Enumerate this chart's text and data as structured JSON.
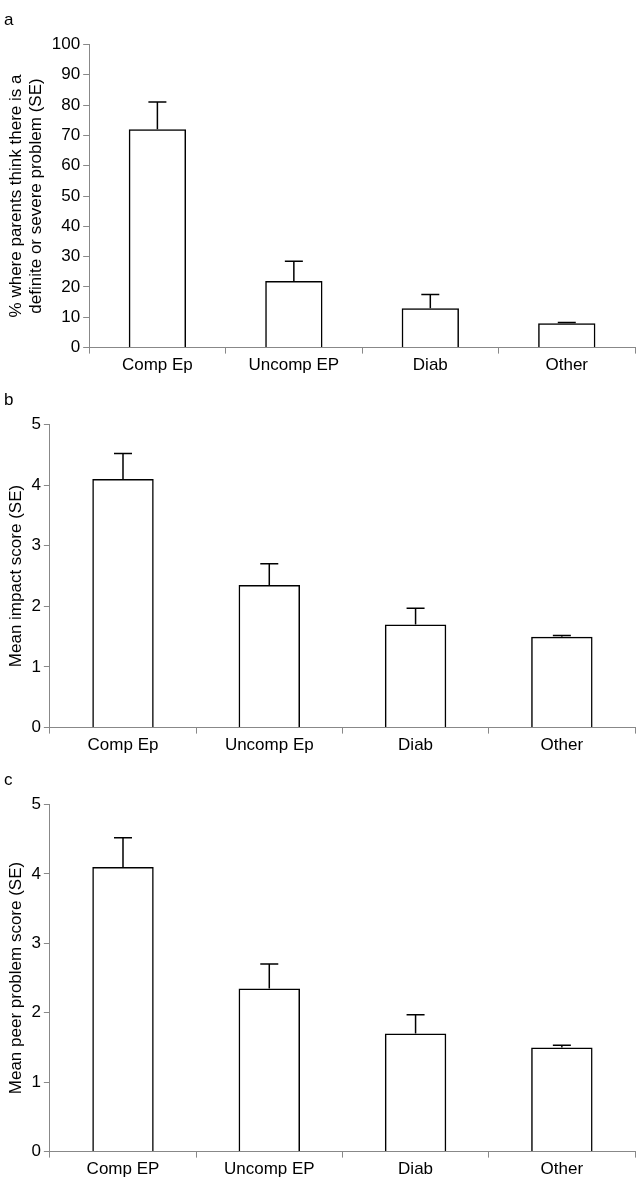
{
  "chart_data": [
    {
      "type": "bar",
      "title": "a",
      "ylabel": "% where parents think there is a definite or severe problem (SE)",
      "categories": [
        "Comp Ep",
        "Uncomp EP",
        "Diab",
        "Other"
      ],
      "values": [
        72,
        22,
        13,
        8
      ],
      "errors": [
        [
          72,
          81
        ],
        [
          22,
          28.5
        ],
        [
          13,
          17.5
        ],
        [
          8,
          8.3
        ]
      ],
      "color": "#000000",
      "ylim": [
        0,
        100
      ],
      "yticks": [
        0,
        10,
        20,
        30,
        40,
        50,
        60,
        70,
        80,
        90,
        100
      ],
      "grid": false
    },
    {
      "type": "bar",
      "title": "b",
      "ylabel": "Mean impact score (SE)",
      "categories": [
        "Comp Ep",
        "Uncomp Ep",
        "Diab",
        "Other"
      ],
      "values": [
        4.1,
        2.35,
        1.7,
        1.5
      ],
      "errors": [
        [
          4.1,
          4.52
        ],
        [
          2.35,
          2.7
        ],
        [
          1.7,
          1.97
        ],
        [
          1.5,
          1.52
        ]
      ],
      "color": "#000000",
      "ylim": [
        0,
        5
      ],
      "yticks": [
        0,
        1,
        2,
        3,
        4,
        5
      ],
      "grid": false
    },
    {
      "type": "bar",
      "title": "c",
      "ylabel": "Mean peer problem score (SE)",
      "categories": [
        "Comp EP",
        "Uncomp EP",
        "Diab",
        "Other"
      ],
      "values": [
        4.1,
        2.35,
        1.7,
        1.5
      ],
      "errors": [
        [
          4.1,
          4.52
        ],
        [
          2.35,
          2.7
        ],
        [
          1.7,
          1.97
        ],
        [
          1.5,
          1.53
        ]
      ],
      "color": "#000000",
      "ylim": [
        0,
        5
      ],
      "yticks": [
        0,
        1,
        2,
        3,
        4,
        5
      ],
      "grid": false
    }
  ]
}
